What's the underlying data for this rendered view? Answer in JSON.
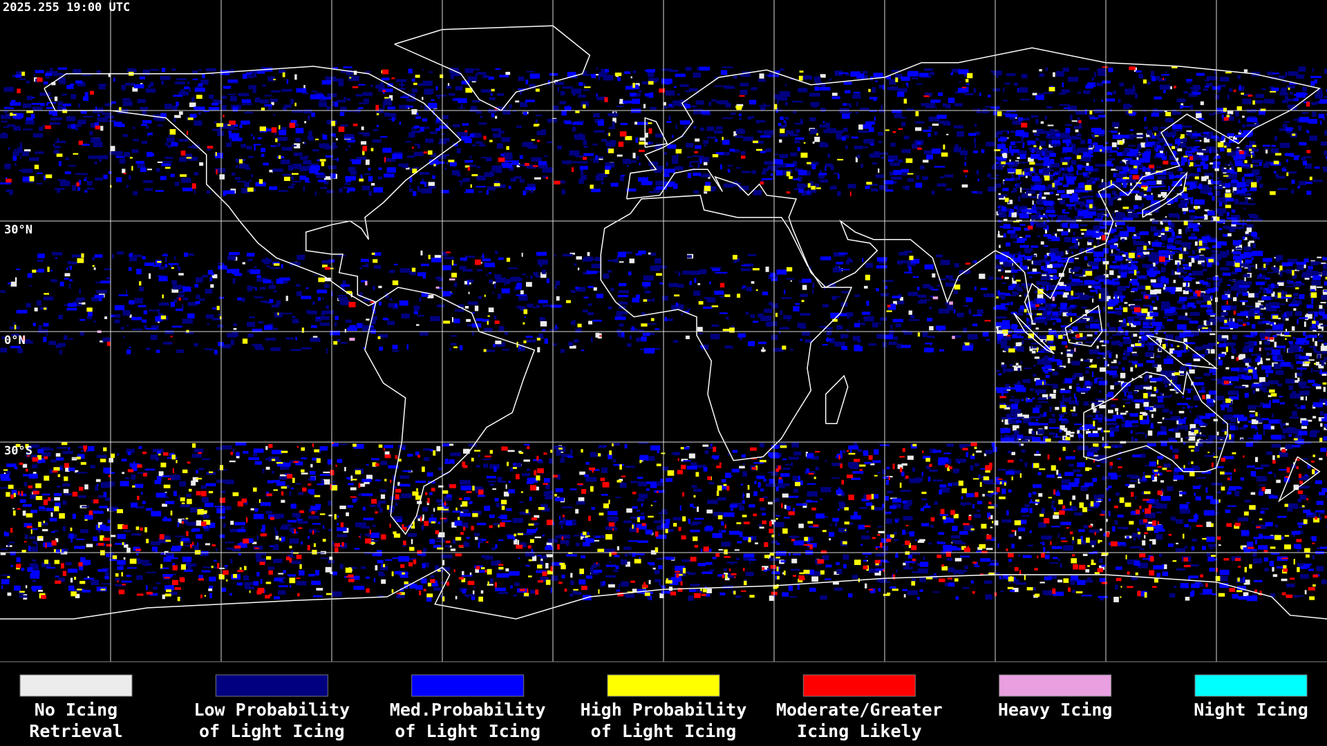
{
  "timestamp": "2025.255 19:00 UTC",
  "latitude_labels": [
    "30°N",
    "0°N",
    "30°S"
  ],
  "legend": [
    {
      "label": [
        "No Icing",
        "Retrieval"
      ],
      "color": "#ececec"
    },
    {
      "label": [
        "Low Probability",
        "of Light Icing"
      ],
      "color": "#000080"
    },
    {
      "label": [
        "Med.Probability",
        "of Light Icing"
      ],
      "color": "#0000ff"
    },
    {
      "label": [
        "High Probability",
        "of Light Icing"
      ],
      "color": "#ffff00"
    },
    {
      "label": [
        "Moderate/Greater",
        "Icing Likely"
      ],
      "color": "#ff0000"
    },
    {
      "label": [
        "Heavy Icing"
      ],
      "color": "#e8a0e0"
    },
    {
      "label": [
        "Night Icing"
      ],
      "color": "#00ffff"
    }
  ]
}
